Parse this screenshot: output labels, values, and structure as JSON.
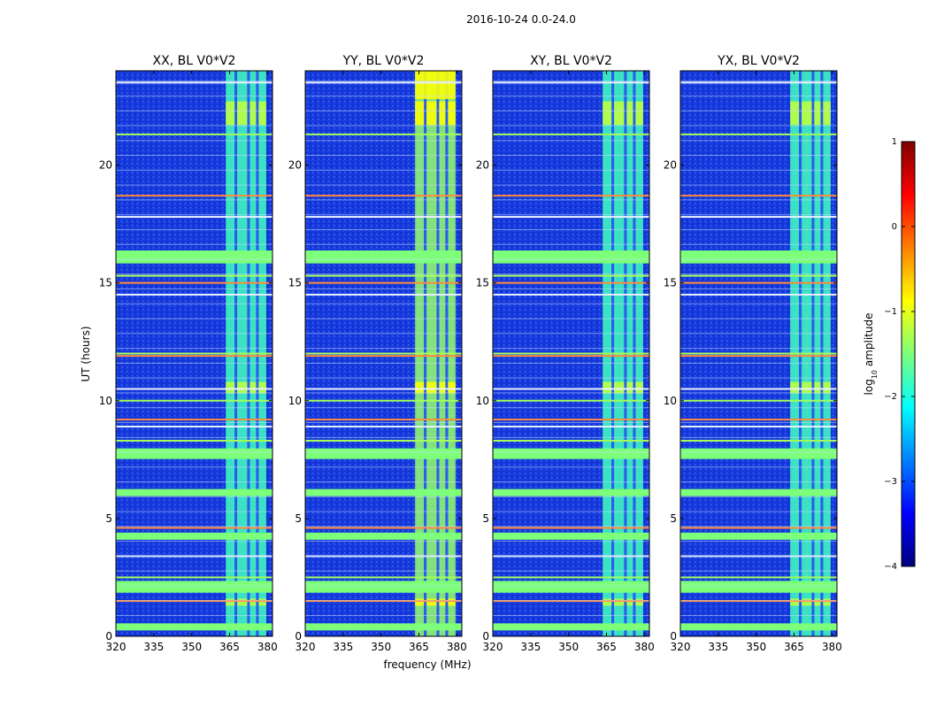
{
  "figure": {
    "suptitle": "2016-10-24 0.0-24.0"
  },
  "chart_data": {
    "type": "heatmap",
    "title": "2016-10-24 0.0-24.0",
    "xlabel": "frequency (MHz)",
    "ylabel": "UT (hours)",
    "xlim": [
      320,
      382
    ],
    "ylim": [
      0,
      24
    ],
    "x_ticks": [
      320,
      335,
      350,
      365,
      380
    ],
    "y_ticks": [
      0,
      5,
      10,
      15,
      20
    ],
    "panels": [
      {
        "title": "XX, BL V0*V2",
        "pol": "XX"
      },
      {
        "title": "YY, BL V0*V2",
        "pol": "YY"
      },
      {
        "title": "XY, BL V0*V2",
        "pol": "XY"
      },
      {
        "title": "YX, BL V0*V2",
        "pol": "YX"
      }
    ],
    "colorbar": {
      "label_parts": [
        "log",
        "10",
        " amplitude"
      ],
      "range": [
        -4,
        1
      ],
      "ticks": [
        "1",
        "0",
        "−1",
        "−2",
        "−3",
        "−4"
      ],
      "colormap": "jet"
    },
    "features": {
      "rfi_band_mhz": [
        363.5,
        379.5
      ],
      "rfi_subband_edges_mhz": [
        363.5,
        367,
        368,
        372,
        373,
        375.5,
        376.5,
        379.5
      ],
      "broadband_rfi_hours": [
        0.4,
        2.0,
        2.2,
        4.25,
        6.1,
        7.75,
        16.1
      ],
      "narrow_rfi_hours": [
        1.5,
        2.5,
        3.4,
        4.6,
        8.3,
        8.9,
        9.2,
        10.0,
        10.5,
        11.9,
        12.0,
        14.5,
        15.0,
        15.3,
        17.8,
        18.7,
        21.3,
        23.5
      ]
    }
  }
}
